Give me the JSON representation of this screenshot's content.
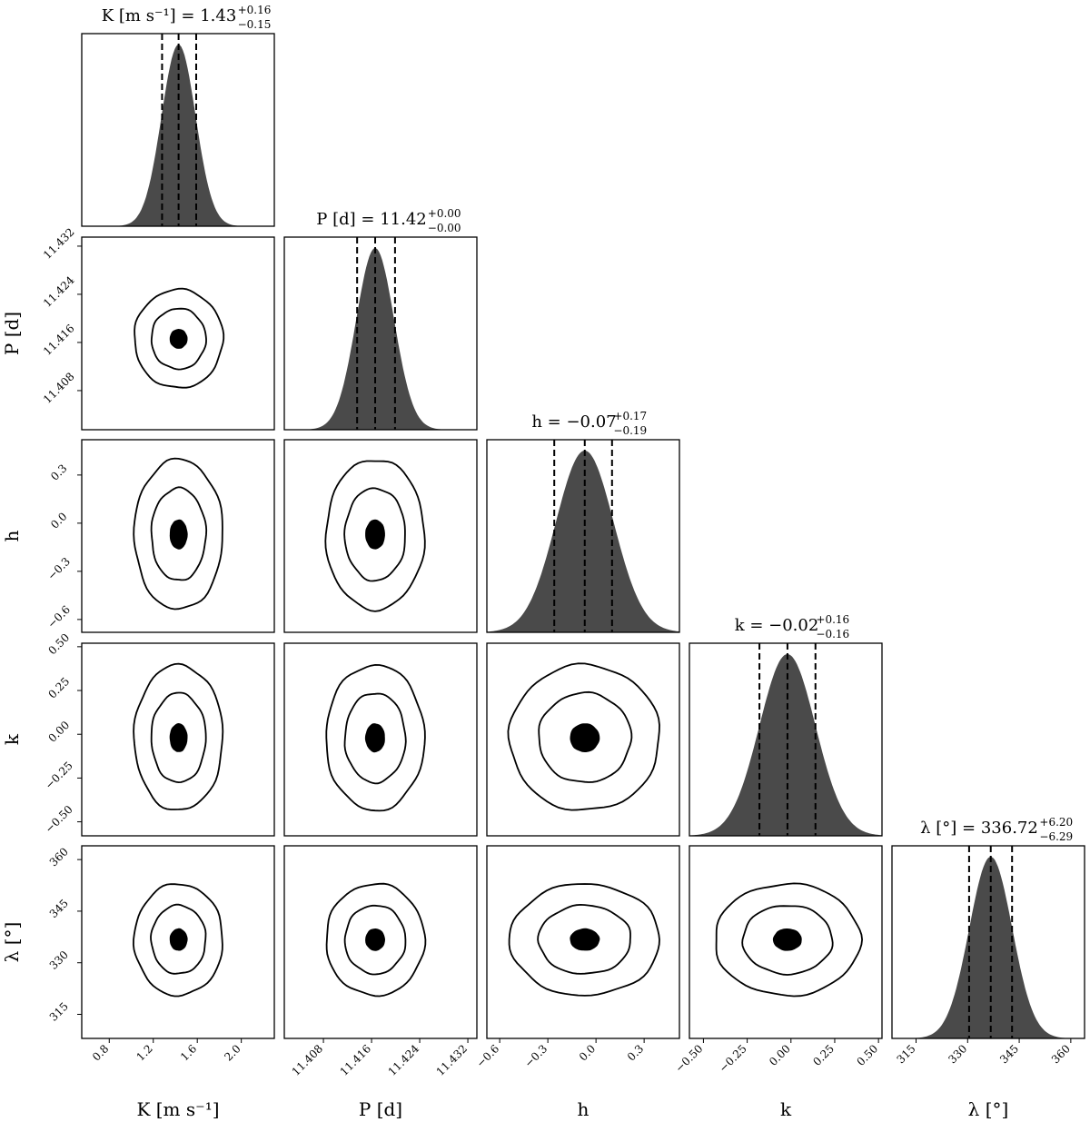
{
  "chart_data": {
    "type": "corner",
    "parameters": [
      {
        "key": "K",
        "label": "K [m s⁻¹]",
        "title": "K [m s⁻¹] = 1.43",
        "title_upper": "+0.16",
        "title_lower": "−0.15",
        "median": 1.43,
        "err_plus": 0.16,
        "err_minus": 0.15,
        "range": [
          0.55,
          2.3
        ],
        "ticks": [
          0.8,
          1.2,
          1.6,
          2.0
        ],
        "tick_labels": [
          "0.8",
          "1.2",
          "1.6",
          "2.0"
        ]
      },
      {
        "key": "P",
        "label": "P [d]",
        "title": "P [d] = 11.42",
        "title_upper": "+0.00",
        "title_lower": "−0.00",
        "median": 11.4166,
        "err_plus": 0.0033,
        "err_minus": 0.003,
        "range": [
          11.4015,
          11.4335
        ],
        "ticks": [
          11.408,
          11.416,
          11.424,
          11.432
        ],
        "tick_labels": [
          "11.408",
          "11.416",
          "11.424",
          "11.432"
        ]
      },
      {
        "key": "h",
        "label": "h",
        "title": "h = −0.07",
        "title_upper": "+0.17",
        "title_lower": "−0.19",
        "median": -0.07,
        "err_plus": 0.17,
        "err_minus": 0.19,
        "range": [
          -0.68,
          0.52
        ],
        "ticks": [
          -0.6,
          -0.3,
          0.0,
          0.3
        ],
        "tick_labels": [
          "−0.6",
          "−0.3",
          "0.0",
          "0.3"
        ]
      },
      {
        "key": "k",
        "label": "k",
        "title": "k = −0.02",
        "title_upper": "+0.16",
        "title_lower": "−0.16",
        "median": -0.02,
        "err_plus": 0.16,
        "err_minus": 0.16,
        "range": [
          -0.58,
          0.52
        ],
        "ticks": [
          -0.5,
          -0.25,
          0.0,
          0.25,
          0.5
        ],
        "tick_labels": [
          "−0.50",
          "−0.25",
          "0.00",
          "0.25",
          "0.50"
        ]
      },
      {
        "key": "lambda",
        "label": "λ [°]",
        "title": "λ [°] = 336.72",
        "title_upper": "+6.20",
        "title_lower": "−6.29",
        "median": 336.72,
        "err_plus": 6.2,
        "err_minus": 6.29,
        "range": [
          308,
          364
        ],
        "ticks": [
          315,
          330,
          345,
          360
        ],
        "tick_labels": [
          "315",
          "330",
          "345",
          "360"
        ]
      }
    ],
    "contour_levels_sigma": [
      0.5,
      1.6,
      2.6
    ],
    "histogram_color": "#4a4a4a",
    "contour_fill_color": "#000000"
  }
}
